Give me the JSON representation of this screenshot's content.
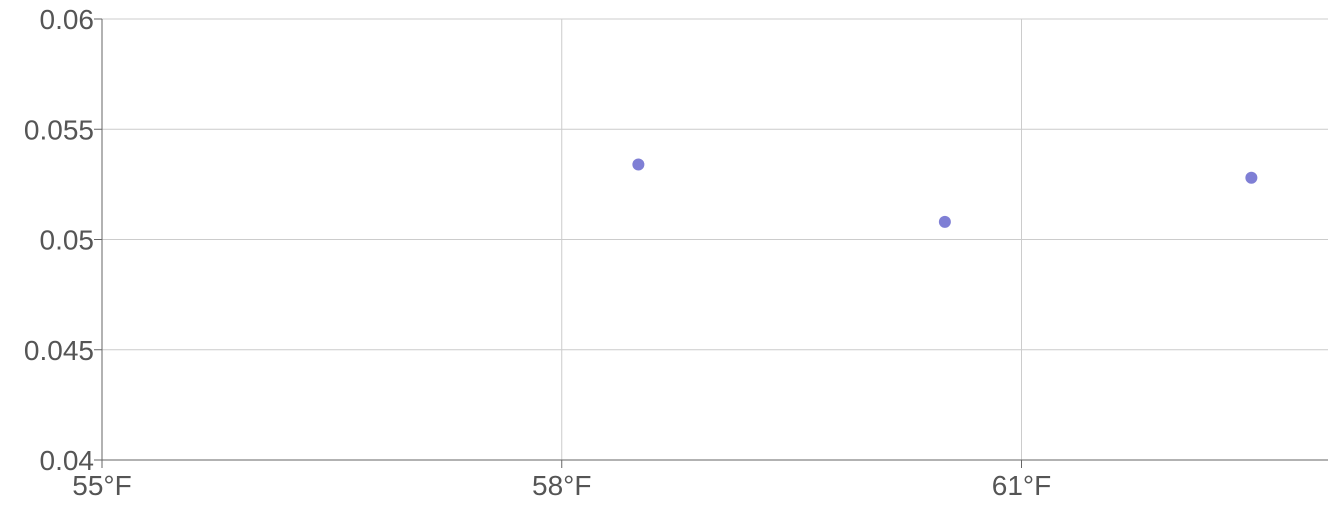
{
  "chart_data": {
    "type": "scatter",
    "title": "",
    "xlabel": "",
    "ylabel": "",
    "xlim": [
      55,
      63
    ],
    "ylim": [
      0.04,
      0.06
    ],
    "x_ticks": [
      {
        "value": 55,
        "label": "55°F"
      },
      {
        "value": 58,
        "label": "58°F"
      },
      {
        "value": 61,
        "label": "61°F"
      }
    ],
    "y_ticks": [
      {
        "value": 0.04,
        "label": "0.04"
      },
      {
        "value": 0.045,
        "label": "0.045"
      },
      {
        "value": 0.05,
        "label": "0.05"
      },
      {
        "value": 0.055,
        "label": "0.055"
      },
      {
        "value": 0.06,
        "label": "0.06"
      }
    ],
    "grid": true,
    "series": [
      {
        "color": "#7f7fd5",
        "points": [
          {
            "x": 58.5,
            "y": 0.0534
          },
          {
            "x": 60.5,
            "y": 0.0508
          },
          {
            "x": 62.5,
            "y": 0.0528
          }
        ]
      }
    ]
  }
}
